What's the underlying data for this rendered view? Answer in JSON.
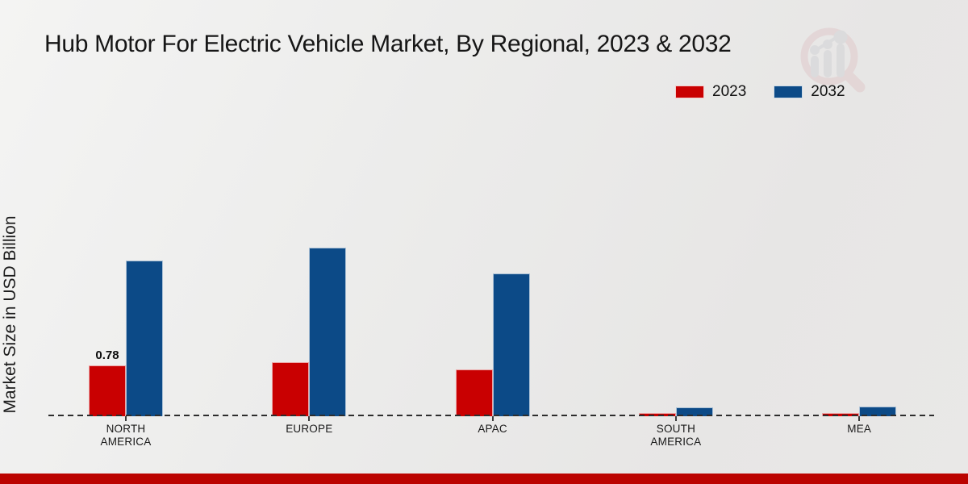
{
  "header": {
    "title": "Hub Motor For Electric Vehicle Market, By Regional, 2023 & 2032"
  },
  "watermark": {
    "icon": "magnifier-bar-chart-logo"
  },
  "colors": {
    "background": "#ececeb",
    "footer_stripe": "#bb0300",
    "baseline": "#2d2d2d",
    "series_2023": "#c90001",
    "series_2032": "#0c4a87"
  },
  "chart_data": {
    "type": "bar",
    "title": "Hub Motor For Electric Vehicle Market, By Regional, 2023 & 2032",
    "xlabel": "",
    "ylabel": "Market Size in USD Billion",
    "unit": "USD Billion",
    "categories": [
      "NORTH AMERICA",
      "EUROPE",
      "APAC",
      "SOUTH AMERICA",
      "MEA"
    ],
    "series": [
      {
        "name": "2023",
        "color": "#c90001",
        "values": [
          0.78,
          0.83,
          0.72,
          0.05,
          0.05
        ]
      },
      {
        "name": "2032",
        "color": "#0c4a87",
        "values": [
          2.39,
          2.59,
          2.19,
          0.14,
          0.15
        ]
      }
    ],
    "data_labels": [
      {
        "series_index": 0,
        "category_index": 0,
        "text": "0.78"
      }
    ],
    "ylim": [
      0,
      3
    ],
    "grid": false,
    "y_axis_ticks_visible": false,
    "baseline_style": "dashed",
    "legend_position": "top-right"
  }
}
